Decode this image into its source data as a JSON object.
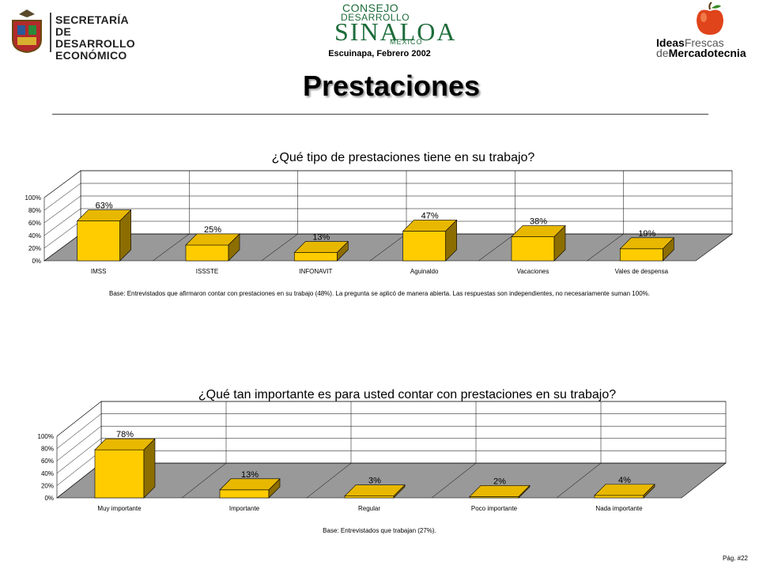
{
  "header": {
    "left_logo_text": "SECRETARÍA\nDE DESARROLLO\nECONÓMICO",
    "center_logo": {
      "line1": "CONSEJO",
      "line2": "DESARROLLO",
      "line3": "SINALOA",
      "line4": "MEXICO"
    },
    "subtitle": "Escuinapa, Febrero 2002",
    "right_logo": {
      "part1": "Ideas",
      "part2": "Frescas",
      "part3": "de",
      "part4": "Mercadotecnia"
    }
  },
  "page_title": "Prestaciones",
  "colors": {
    "bar_front": "#FFCC00",
    "bar_top": "#E8B800",
    "bar_side": "#8C6D00",
    "floor": "#999999"
  },
  "chart_data": [
    {
      "type": "bar",
      "title": "¿Qué tipo de prestaciones tiene en su trabajo?",
      "categories": [
        "IMSS",
        "ISSSTE",
        "INFONAVIT",
        "Aguinaldo",
        "Vacaciones",
        "Vales de despensa"
      ],
      "values": [
        63,
        25,
        13,
        47,
        38,
        19
      ],
      "value_labels": [
        "63%",
        "25%",
        "13%",
        "47%",
        "38%",
        "19%"
      ],
      "yticks": [
        "0%",
        "20%",
        "40%",
        "60%",
        "80%",
        "100%"
      ],
      "ylim": [
        0,
        100
      ],
      "grid": true,
      "note": "Base: Entrevistados que afirmaron contar con prestaciones en su trabajo (48%). La pregunta se aplicó de manera abierta. Las respuestas son independientes, no necesariamente suman 100%."
    },
    {
      "type": "bar",
      "title": "¿Qué tan importante es para usted contar con prestaciones en su trabajo?",
      "categories": [
        "Muy importante",
        "Importante",
        "Regular",
        "Poco importante",
        "Nada importante"
      ],
      "values": [
        78,
        13,
        3,
        2,
        4
      ],
      "value_labels": [
        "78%",
        "13%",
        "3%",
        "2%",
        "4%"
      ],
      "yticks": [
        "0%",
        "20%",
        "40%",
        "60%",
        "80%",
        "100%"
      ],
      "ylim": [
        0,
        100
      ],
      "grid": true,
      "note": "Base:   Entrevistados que trabajan (27%)."
    }
  ],
  "footer": {
    "page": "Pág. #22"
  }
}
